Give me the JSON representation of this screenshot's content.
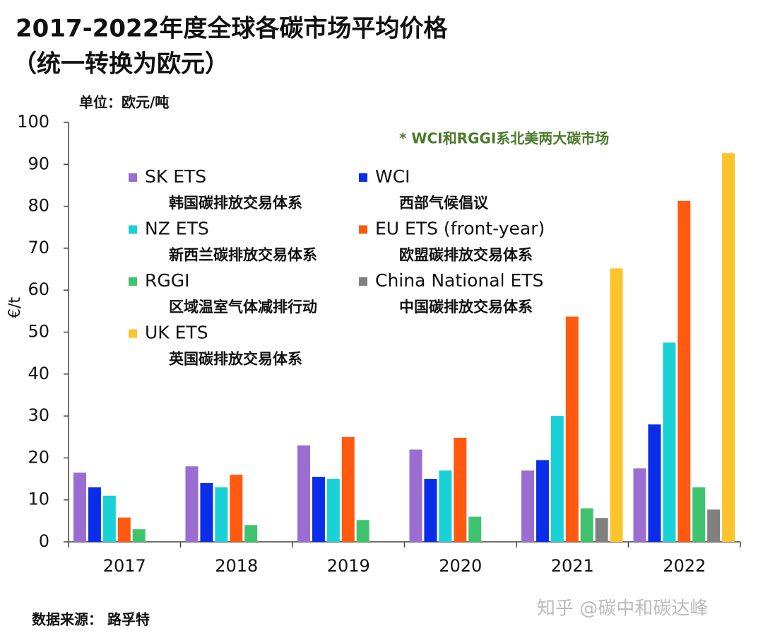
{
  "chart_data": {
    "type": "bar",
    "title": "2017-2022年度全球各碳市场平均价格",
    "subtitle": "（统一转换为欧元）",
    "unit": "单位：欧元/吨",
    "annotation": "* WCI和RGGI系北美两大碳市场",
    "y_label": "€/t",
    "source": "数据来源： 路孚特",
    "watermark": "知乎 @碳中和碳达峰",
    "categories": [
      "2017",
      "2018",
      "2019",
      "2020",
      "2021",
      "2022"
    ],
    "series": [
      {
        "name": "SK ETS",
        "description": "韩国碳排放交易体系",
        "color": "#9b6dd0",
        "values": [
          16.5,
          18,
          23,
          22,
          17,
          17.5
        ]
      },
      {
        "name": "WCI",
        "description": "西部气候倡议",
        "color": "#0a2ee8",
        "values": [
          13,
          14,
          15.5,
          15,
          19.5,
          28
        ]
      },
      {
        "name": "NZ ETS",
        "description": "新西兰碳排放交易体系",
        "color": "#19d2d8",
        "values": [
          11,
          13,
          15,
          17,
          30,
          47.5
        ]
      },
      {
        "name": "EU ETS (front-year)",
        "description": "欧盟碳排放交易体系",
        "color": "#ff5a10",
        "values": [
          5.8,
          16,
          25,
          24.8,
          53.7,
          81.3
        ]
      },
      {
        "name": "RGGI",
        "description": "区域温室气体减排行动",
        "color": "#3ec46e",
        "values": [
          3,
          4,
          5.2,
          6,
          8,
          13
        ]
      },
      {
        "name": "China National ETS",
        "description": "中国碳排放交易体系",
        "color": "#808080",
        "values": [
          null,
          null,
          null,
          null,
          5.7,
          7.7
        ]
      },
      {
        "name": "UK ETS",
        "description": "英国碳排放交易体系",
        "color": "#fbc42a",
        "values": [
          null,
          null,
          null,
          null,
          65.2,
          92.7
        ]
      }
    ],
    "ylim": [
      0,
      100
    ],
    "yticks": [
      0,
      10,
      20,
      30,
      40,
      50,
      60,
      70,
      80,
      90,
      100
    ],
    "grid": false
  }
}
